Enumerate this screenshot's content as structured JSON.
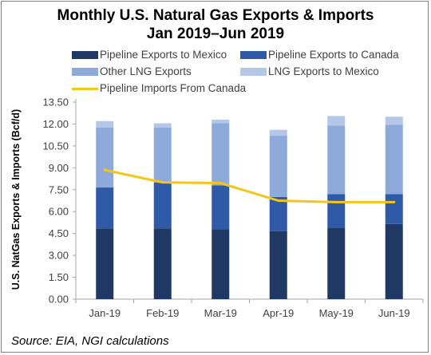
{
  "title_line1": "Monthly U.S. Natural Gas Exports & Imports",
  "title_line2": "Jan 2019–Jun 2019",
  "source": "Source: EIA, NGI calculations",
  "colors": {
    "pipeline_mexico": "#1f3864",
    "pipeline_canada": "#2e5aa8",
    "other_lng": "#8eaadb",
    "lng_mexico": "#b4c7e7",
    "imports_canada": "#f5c518"
  },
  "chart_data": {
    "type": "bar",
    "stacked": true,
    "title": "Monthly U.S. Natural Gas Exports & Imports Jan 2019–Jun 2019",
    "xlabel": "",
    "ylabel": "U.S. NatGas Exports & Imports (Bcf/d)",
    "ylim": [
      0,
      13.5
    ],
    "yticks": [
      "0.00",
      "1.50",
      "3.00",
      "4.50",
      "6.00",
      "7.50",
      "9.00",
      "10.50",
      "12.00",
      "13.50"
    ],
    "categories": [
      "Jan-19",
      "Feb-19",
      "Mar-19",
      "Apr-19",
      "May-19",
      "Jun-19"
    ],
    "series": [
      {
        "name": "Pipeline Exports to Mexico",
        "kind": "bar",
        "values": [
          4.85,
          4.85,
          4.8,
          4.65,
          4.9,
          5.15
        ]
      },
      {
        "name": "Pipeline Exports to Canada",
        "kind": "bar",
        "values": [
          2.8,
          3.15,
          3.0,
          2.35,
          2.3,
          2.05
        ]
      },
      {
        "name": "Other LNG Exports",
        "kind": "bar",
        "values": [
          4.1,
          3.75,
          4.25,
          4.2,
          4.7,
          4.75
        ]
      },
      {
        "name": "LNG Exports to Mexico",
        "kind": "bar",
        "values": [
          0.45,
          0.3,
          0.25,
          0.4,
          0.65,
          0.55
        ]
      },
      {
        "name": "Pipeline Imports From Canada",
        "kind": "line",
        "values": [
          8.85,
          8.0,
          7.95,
          6.75,
          6.65,
          6.65
        ]
      }
    ],
    "legend_position": "top",
    "grid": false
  }
}
